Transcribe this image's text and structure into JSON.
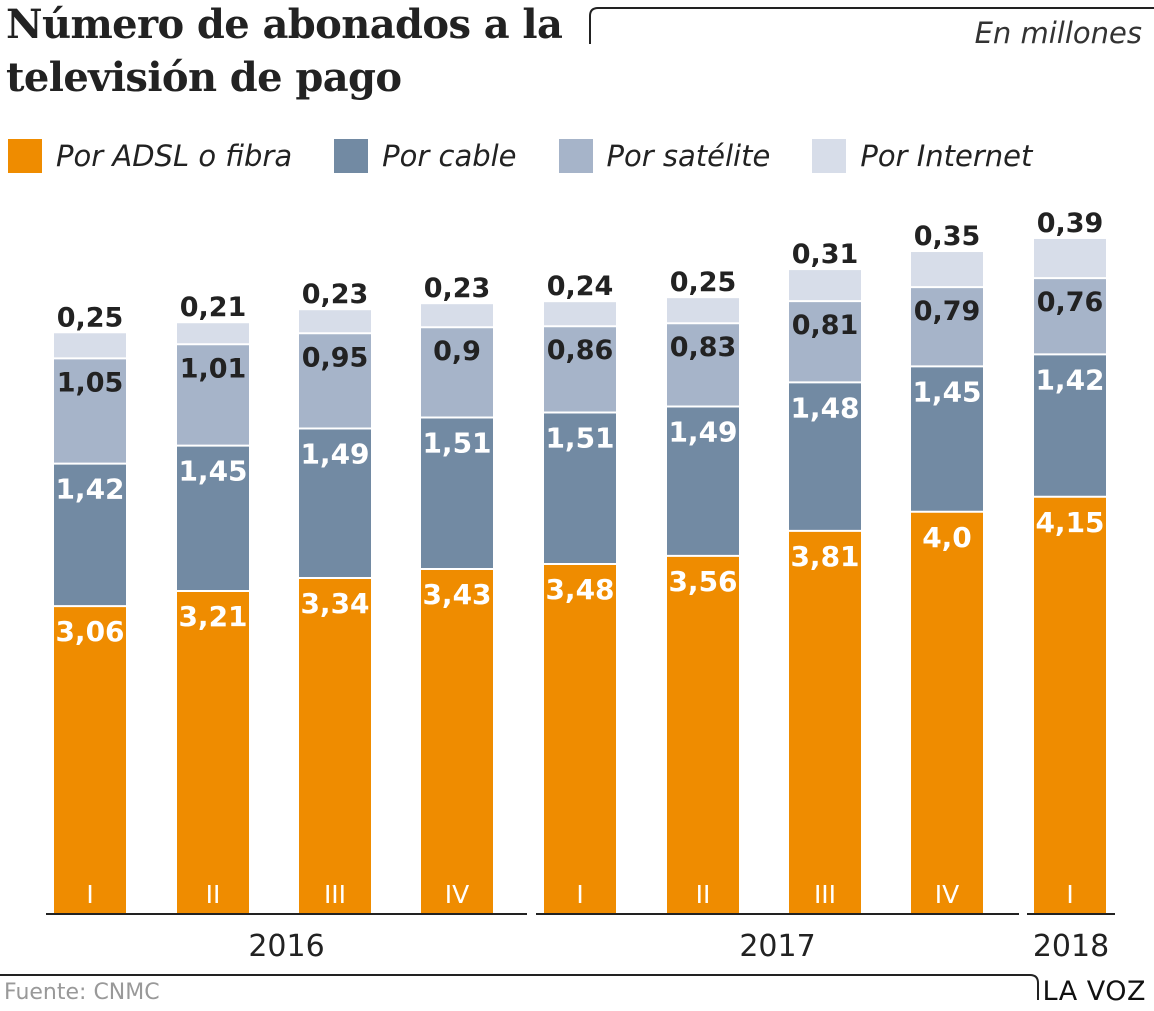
{
  "title_line1": "Número de abonados a la",
  "title_line2": "televisión de pago",
  "subtitle": "En millones",
  "source": "Fuente: CNMC",
  "brand": "LA VOZ",
  "legend": [
    {
      "label": "Por ADSL o fibra",
      "color": "#ef8c00"
    },
    {
      "label": "Por cable",
      "color": "#728aa3"
    },
    {
      "label": "Por satélite",
      "color": "#a6b4c9"
    },
    {
      "label": "Por Internet",
      "color": "#d7dde9"
    }
  ],
  "chart_data": {
    "type": "bar",
    "stacked": true,
    "categories": [
      "I",
      "II",
      "III",
      "IV",
      "I",
      "II",
      "III",
      "IV",
      "I"
    ],
    "years": [
      {
        "label": "2016",
        "categories": [
          0,
          1,
          2,
          3
        ]
      },
      {
        "label": "2017",
        "categories": [
          4,
          5,
          6,
          7
        ]
      },
      {
        "label": "2018",
        "categories": [
          8
        ]
      }
    ],
    "series": [
      {
        "name": "Por ADSL o fibra",
        "color": "#ef8c00",
        "values": [
          3.06,
          3.21,
          3.34,
          3.43,
          3.48,
          3.56,
          3.81,
          4.0,
          4.15
        ],
        "labels": [
          "3,06",
          "3,21",
          "3,34",
          "3,43",
          "3,48",
          "3,56",
          "3,81",
          "4,0",
          "4,15"
        ]
      },
      {
        "name": "Por cable",
        "color": "#728aa3",
        "values": [
          1.42,
          1.45,
          1.49,
          1.51,
          1.51,
          1.49,
          1.48,
          1.45,
          1.42
        ],
        "labels": [
          "1,42",
          "1,45",
          "1,49",
          "1,51",
          "1,51",
          "1,49",
          "1,48",
          "1,45",
          "1,42"
        ]
      },
      {
        "name": "Por satélite",
        "color": "#a6b4c9",
        "values": [
          1.05,
          1.01,
          0.95,
          0.9,
          0.86,
          0.83,
          0.81,
          0.79,
          0.76
        ],
        "labels": [
          "1,05",
          "1,01",
          "0,95",
          "0,9",
          "0,86",
          "0,83",
          "0,81",
          "0,79",
          "0,76"
        ]
      },
      {
        "name": "Por Internet",
        "color": "#d7dde9",
        "values": [
          0.25,
          0.21,
          0.23,
          0.23,
          0.24,
          0.25,
          0.31,
          0.35,
          0.39
        ],
        "labels": [
          "0,25",
          "0,21",
          "0,23",
          "0,23",
          "0,24",
          "0,25",
          "0,31",
          "0,35",
          "0,39"
        ]
      }
    ],
    "grid": false,
    "legend_position": "top-left"
  }
}
